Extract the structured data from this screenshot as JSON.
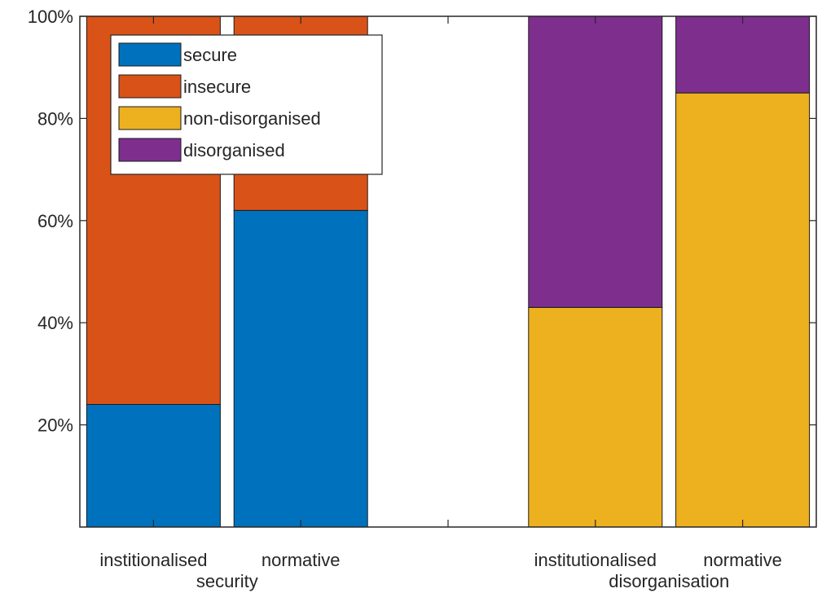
{
  "chart_data": {
    "type": "bar",
    "stacked": true,
    "categories": [
      "institionalised",
      "normative",
      "",
      "institutionalised",
      "normative"
    ],
    "groups": [
      {
        "label": "security",
        "categories": [
          0,
          1
        ]
      },
      {
        "label": "disorganisation",
        "categories": [
          3,
          4
        ]
      }
    ],
    "series": [
      {
        "name": "secure",
        "color": "#0072BD",
        "values": [
          24,
          62,
          0,
          0,
          0
        ]
      },
      {
        "name": "insecure",
        "color": "#D95319",
        "values": [
          76,
          38,
          0,
          0,
          0
        ]
      },
      {
        "name": "non-disorganised",
        "color": "#EDB120",
        "values": [
          0,
          0,
          0,
          43,
          85
        ]
      },
      {
        "name": "disorganised",
        "color": "#7E2F8E",
        "values": [
          0,
          0,
          0,
          57,
          15
        ]
      }
    ],
    "ylim": [
      0,
      100
    ],
    "yticks": [
      20,
      40,
      60,
      80,
      100
    ],
    "ytick_labels": [
      "20%",
      "40%",
      "60%",
      "80%",
      "100%"
    ],
    "legend_position": "top-left",
    "grid": false
  }
}
